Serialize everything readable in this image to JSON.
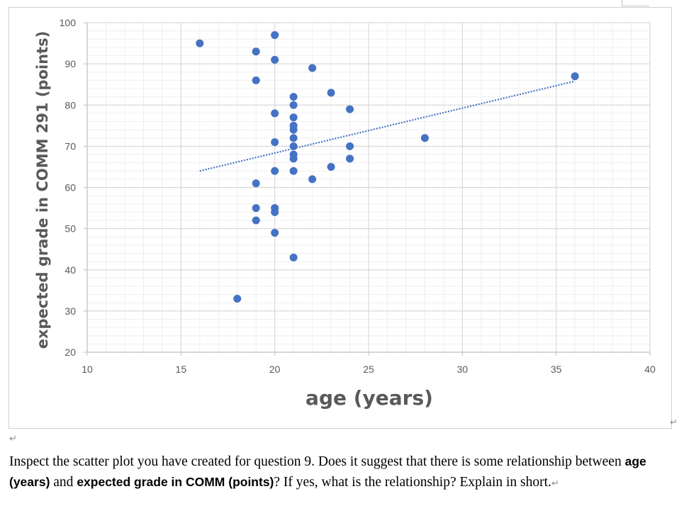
{
  "chart_data": {
    "type": "scatter",
    "xlabel": "age (years)",
    "ylabel": "expected grade in COMM 291 (points)",
    "xlim": [
      10,
      40
    ],
    "ylim": [
      20,
      100
    ],
    "x_ticks": [
      "10",
      "15",
      "20",
      "25",
      "30",
      "35",
      "40"
    ],
    "y_ticks": [
      "20",
      "30",
      "40",
      "50",
      "60",
      "70",
      "80",
      "90",
      "100"
    ],
    "grid": true,
    "minor_grid": true,
    "point_color": "#4472c4",
    "trendline": {
      "type": "linear",
      "style": "dotted",
      "color": "#4472c4",
      "x_range": [
        16,
        36
      ],
      "y_start": 64,
      "y_end": 85.8
    },
    "points": [
      {
        "x": 16,
        "y": 95
      },
      {
        "x": 18,
        "y": 33
      },
      {
        "x": 19,
        "y": 93
      },
      {
        "x": 19,
        "y": 86
      },
      {
        "x": 19,
        "y": 61
      },
      {
        "x": 19,
        "y": 55
      },
      {
        "x": 19,
        "y": 52
      },
      {
        "x": 20,
        "y": 97
      },
      {
        "x": 20,
        "y": 91
      },
      {
        "x": 20,
        "y": 78
      },
      {
        "x": 20,
        "y": 71
      },
      {
        "x": 20,
        "y": 64
      },
      {
        "x": 20,
        "y": 55
      },
      {
        "x": 20,
        "y": 54
      },
      {
        "x": 20,
        "y": 49
      },
      {
        "x": 21,
        "y": 82
      },
      {
        "x": 21,
        "y": 80
      },
      {
        "x": 21,
        "y": 77
      },
      {
        "x": 21,
        "y": 75
      },
      {
        "x": 21,
        "y": 74
      },
      {
        "x": 21,
        "y": 72
      },
      {
        "x": 21,
        "y": 70
      },
      {
        "x": 21,
        "y": 68
      },
      {
        "x": 21,
        "y": 67
      },
      {
        "x": 21,
        "y": 64
      },
      {
        "x": 21,
        "y": 43
      },
      {
        "x": 22,
        "y": 89
      },
      {
        "x": 22,
        "y": 62
      },
      {
        "x": 23,
        "y": 83
      },
      {
        "x": 23,
        "y": 65
      },
      {
        "x": 24,
        "y": 79
      },
      {
        "x": 24,
        "y": 70
      },
      {
        "x": 24,
        "y": 67
      },
      {
        "x": 28,
        "y": 72
      },
      {
        "x": 36,
        "y": 87
      }
    ]
  },
  "question": {
    "text_1": "Inspect the scatter plot you have created for question 9. Does it suggest that there is some relationship between ",
    "bold_1": "age (years)",
    "text_2": " and ",
    "bold_2": "expected grade in COMM (points)",
    "text_3": "? If yes, what is the relationship? Explain in short."
  },
  "marks": {
    "return_symbol": "↵"
  }
}
